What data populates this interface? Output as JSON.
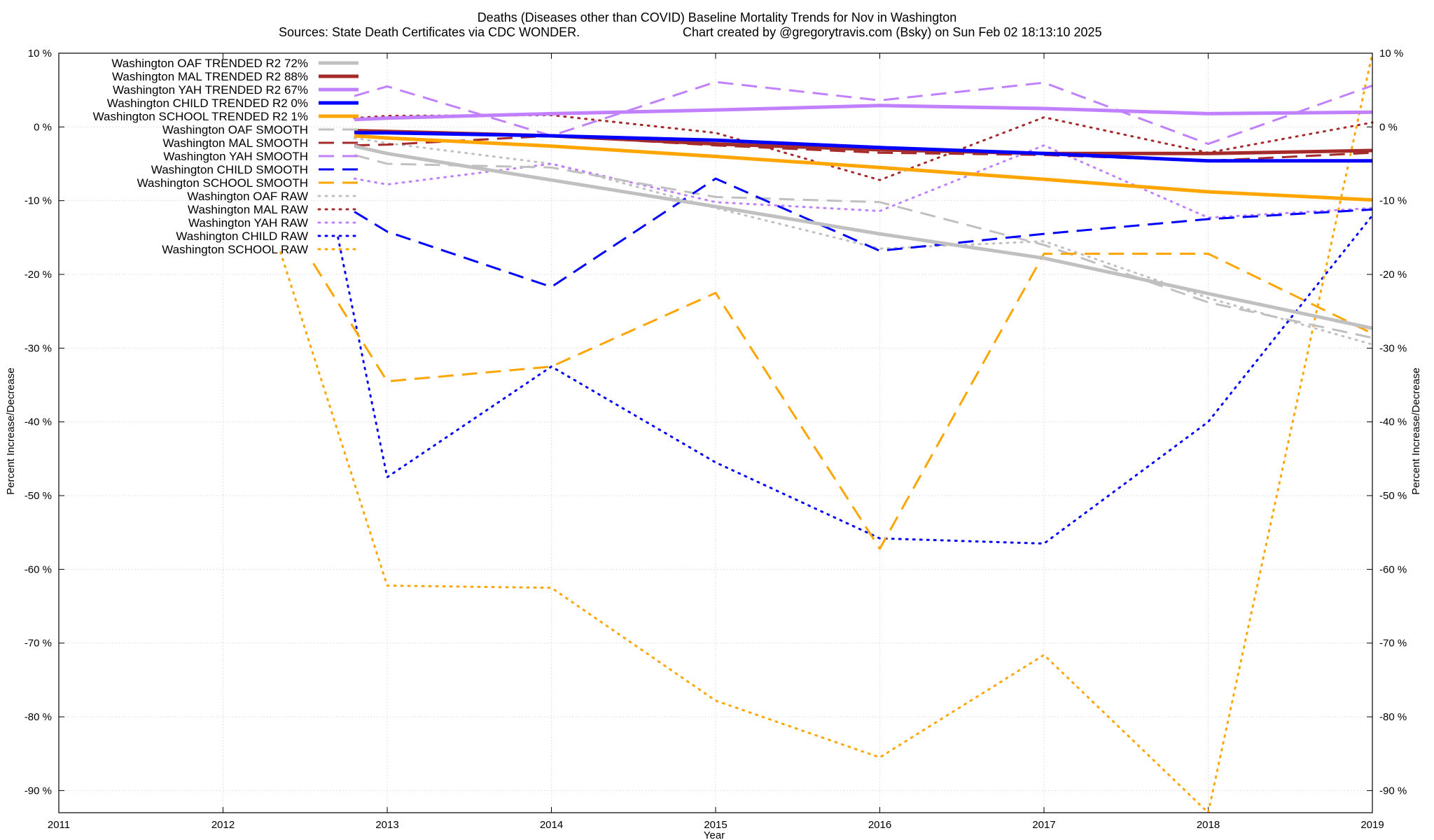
{
  "chart_data": {
    "type": "line",
    "title_line1": "Deaths (Diseases other than COVID)  Baseline Mortality Trends for Nov in Washington",
    "title_line2_left": "Sources: State Death Certificates via CDC WONDER.",
    "title_line2_right": "Chart created by @gregorytravis.com (Bsky) on Sun Feb 02 18:13:10 2025",
    "xlabel": "Year",
    "ylabel_left": "Percent Increase/Decrease",
    "ylabel_right": "Percent Increase/Decrease",
    "xlim": [
      2011,
      2019
    ],
    "ylim": [
      -93,
      10
    ],
    "x_ticks": [
      2011,
      2012,
      2013,
      2014,
      2015,
      2016,
      2017,
      2018,
      2019
    ],
    "x_tick_labels": [
      "2011",
      "2012",
      "2013",
      "2014",
      "2015",
      "2016",
      "2017",
      "2018",
      "2019"
    ],
    "y_ticks": [
      10,
      0,
      -10,
      -20,
      -30,
      -40,
      -50,
      -60,
      -70,
      -80,
      -90
    ],
    "y_tick_labels": [
      "10 %",
      "0 %",
      "-10 %",
      "-20 %",
      "-30 %",
      "-40 %",
      "-50 %",
      "-60 %",
      "-70 %",
      "-80 %",
      "-90 %"
    ],
    "grid": true,
    "legend_position": "top-left",
    "series": [
      {
        "name": "Washington OAF TRENDED R2  72%",
        "color": "#c0c0c0",
        "style": "solid",
        "width": 5,
        "x": [
          2012.8,
          2013,
          2014,
          2015,
          2016,
          2017,
          2018,
          2019
        ],
        "y": [
          -2.6,
          -3.6,
          -7.2,
          -10.8,
          -14.5,
          -17.8,
          -22.6,
          -27.3
        ]
      },
      {
        "name": "Washington MAL TRENDED R2  88%",
        "color": "#a52a2a",
        "style": "solid",
        "width": 5,
        "x": [
          2012.8,
          2013,
          2014,
          2015,
          2016,
          2017,
          2018,
          2019
        ],
        "y": [
          -0.5,
          -0.6,
          -1.2,
          -2.3,
          -3.1,
          -3.6,
          -3.6,
          -3.2
        ]
      },
      {
        "name": "Washington YAH TRENDED R2  67%",
        "color": "#c080ff",
        "style": "solid",
        "width": 5,
        "x": [
          2012.8,
          2013,
          2014,
          2015,
          2016,
          2017,
          2018,
          2019
        ],
        "y": [
          1.0,
          1.2,
          1.8,
          2.3,
          2.9,
          2.5,
          1.8,
          2.0
        ]
      },
      {
        "name": "Washington CHILD TRENDED R2  0%",
        "color": "#0000ff",
        "style": "solid",
        "width": 5,
        "x": [
          2012.8,
          2013,
          2014,
          2015,
          2016,
          2017,
          2018,
          2019
        ],
        "y": [
          -0.8,
          -0.8,
          -1.2,
          -1.8,
          -2.8,
          -3.6,
          -4.6,
          -4.6
        ]
      },
      {
        "name": "Washington SCHOOL TRENDED R2  1%",
        "color": "#ffa500",
        "style": "solid",
        "width": 5,
        "x": [
          2012.8,
          2013,
          2014,
          2015,
          2016,
          2017,
          2018,
          2019
        ],
        "y": [
          -1.2,
          -1.5,
          -2.6,
          -4.0,
          -5.5,
          -7.1,
          -8.8,
          -9.9
        ]
      },
      {
        "name": "Washington OAF SMOOTH",
        "color": "#c0c0c0",
        "style": "dash",
        "width": 3,
        "x": [
          2012.8,
          2013,
          2014,
          2015,
          2016,
          2017,
          2018,
          2019
        ],
        "y": [
          -3.8,
          -5.0,
          -5.5,
          -9.5,
          -10.2,
          -16.0,
          -23.8,
          -28.6
        ]
      },
      {
        "name": "Washington MAL SMOOTH",
        "color": "#a52a2a",
        "style": "dash",
        "width": 3,
        "x": [
          2012.8,
          2013,
          2014,
          2015,
          2016,
          2017,
          2018,
          2019
        ],
        "y": [
          -2.5,
          -2.4,
          -1.2,
          -2.5,
          -3.5,
          -3.8,
          -4.6,
          -3.5
        ]
      },
      {
        "name": "Washington YAH SMOOTH",
        "color": "#c080ff",
        "style": "dash",
        "width": 3,
        "x": [
          2012.8,
          2013,
          2014,
          2015,
          2016,
          2017,
          2018,
          2019
        ],
        "y": [
          4.2,
          5.5,
          -1.2,
          6.1,
          3.6,
          6.0,
          -2.3,
          5.6
        ]
      },
      {
        "name": "Washington CHILD SMOOTH",
        "color": "#0000ff",
        "style": "dash",
        "width": 3,
        "x": [
          2012.8,
          2013,
          2014,
          2015,
          2016,
          2017,
          2018,
          2019
        ],
        "y": [
          -11.5,
          -14.2,
          -21.7,
          -7.0,
          -16.8,
          -14.5,
          -12.5,
          -11.2
        ]
      },
      {
        "name": "Washington SCHOOL SMOOTH",
        "color": "#ffa500",
        "style": "dash",
        "width": 3,
        "x": [
          2012.55,
          2013,
          2014,
          2015,
          2016,
          2017,
          2018,
          2019
        ],
        "y": [
          -18.5,
          -34.5,
          -32.5,
          -22.5,
          -57.2,
          -17.2,
          -17.2,
          -28.0
        ]
      },
      {
        "name": "Washington OAF RAW",
        "color": "#c0c0c0",
        "style": "dot",
        "width": 3,
        "x": [
          2012.8,
          2013,
          2014,
          2015,
          2016,
          2017,
          2018,
          2019
        ],
        "y": [
          -1.5,
          -2.2,
          -5.0,
          -11.0,
          -16.5,
          -15.5,
          -23.2,
          -29.5
        ]
      },
      {
        "name": "Washington MAL RAW",
        "color": "#a52a2a",
        "style": "dot",
        "width": 3,
        "x": [
          2012.8,
          2013,
          2014,
          2015,
          2016,
          2017,
          2018,
          2019
        ],
        "y": [
          1.2,
          1.5,
          1.6,
          -0.8,
          -7.2,
          1.3,
          -3.5,
          0.6
        ]
      },
      {
        "name": "Washington YAH RAW",
        "color": "#c080ff",
        "style": "dot",
        "width": 3,
        "x": [
          2012.8,
          2013,
          2014,
          2015,
          2016,
          2017,
          2018,
          2019
        ],
        "y": [
          -7.0,
          -7.8,
          -5.0,
          -10.2,
          -11.4,
          -2.5,
          -12.3,
          -11.0
        ]
      },
      {
        "name": "Washington CHILD RAW",
        "color": "#0000ff",
        "style": "dot",
        "width": 3,
        "x": [
          2012.7,
          2013,
          2014,
          2015,
          2016,
          2017,
          2018,
          2019
        ],
        "y": [
          -15.0,
          -47.5,
          -32.5,
          -45.5,
          -55.8,
          -56.5,
          -40.0,
          -12.0
        ]
      },
      {
        "name": "Washington SCHOOL RAW",
        "color": "#ffa500",
        "style": "dot",
        "width": 3,
        "x": [
          2012.35,
          2013,
          2014,
          2015,
          2016,
          2017,
          2018,
          2019
        ],
        "y": [
          -17.0,
          -62.2,
          -62.5,
          -77.8,
          -85.5,
          -71.6,
          -93.0,
          10.0
        ]
      }
    ]
  }
}
